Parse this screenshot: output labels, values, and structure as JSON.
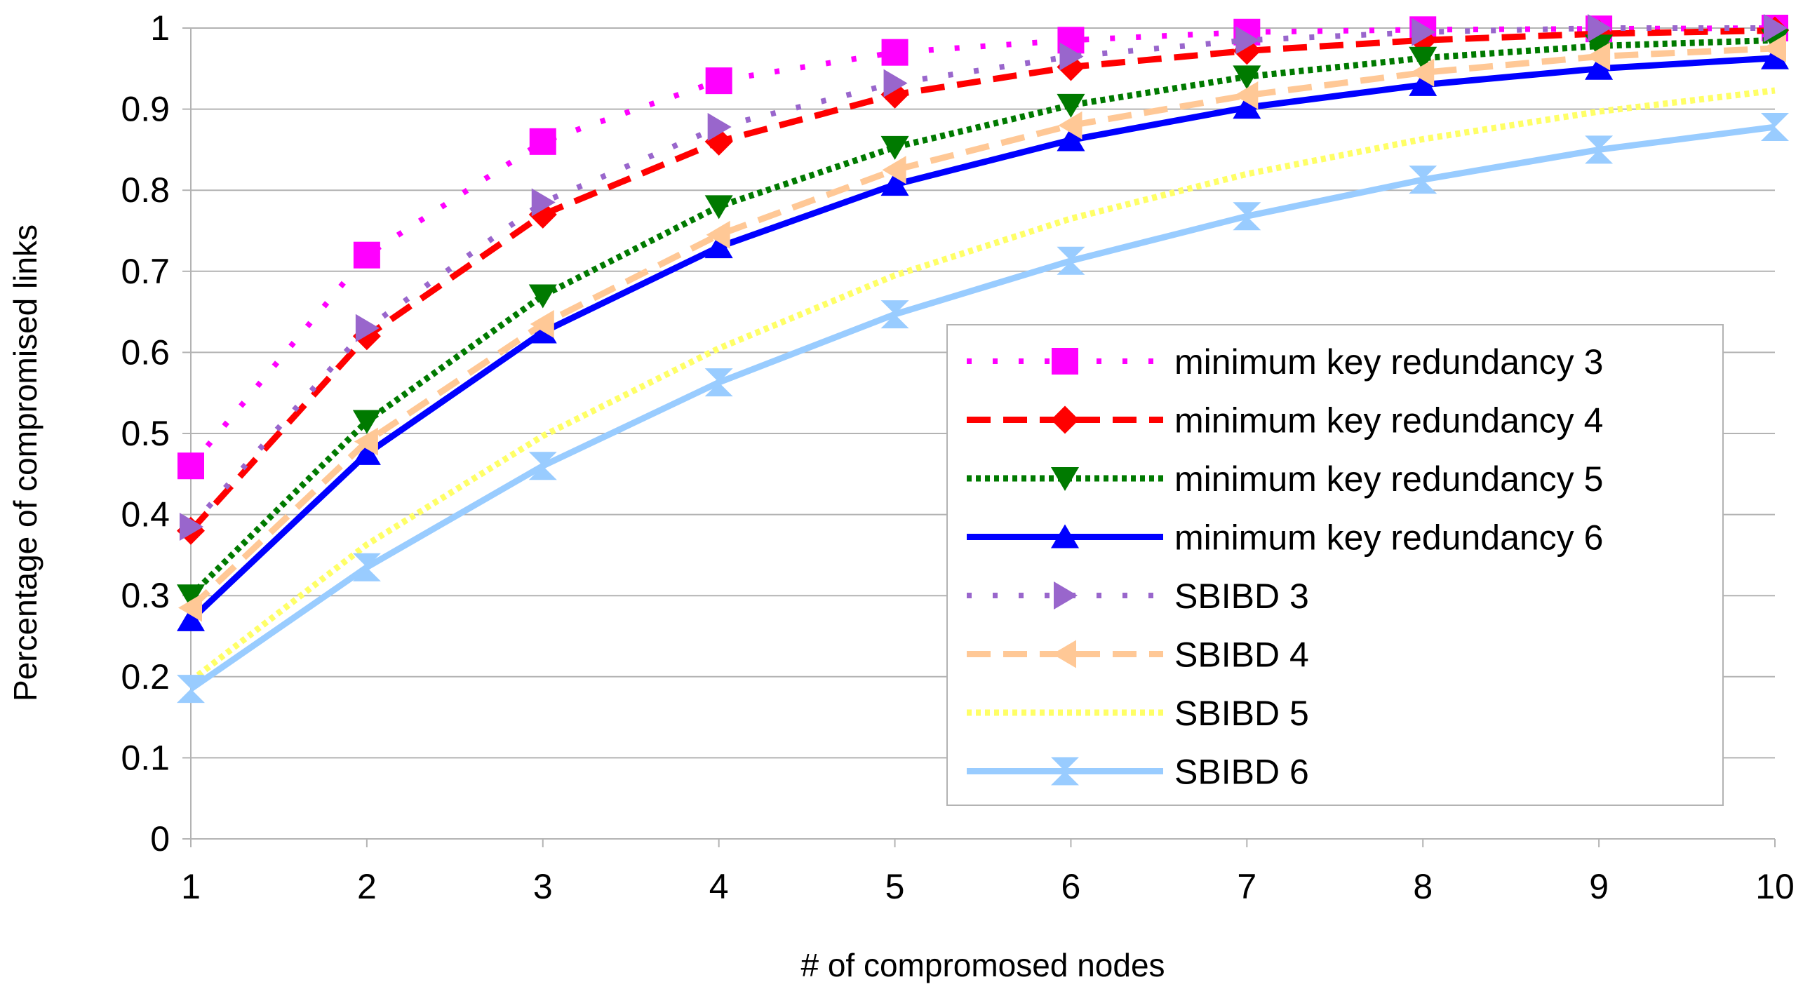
{
  "chart_data": {
    "type": "line",
    "xlabel": "# of compromosed nodes",
    "ylabel": "Percentage of compromised links",
    "x": [
      1,
      2,
      3,
      4,
      5,
      6,
      7,
      8,
      9,
      10
    ],
    "x_ticks": [
      "1",
      "2",
      "3",
      "4",
      "5",
      "6",
      "7",
      "8",
      "9",
      "10"
    ],
    "xlim": [
      1,
      10
    ],
    "ylim": [
      0,
      1
    ],
    "y_ticks": [
      "0",
      "0.1",
      "0.2",
      "0.3",
      "0.4",
      "0.5",
      "0.6",
      "0.7",
      "0.8",
      "0.9",
      "1"
    ],
    "grid": "horizontal",
    "legend_position": "lower-right inside plot",
    "series": [
      {
        "name": "minimum key redundancy 3",
        "color": "#ff00ff",
        "dash": "dots",
        "marker": "square",
        "values": [
          0.46,
          0.72,
          0.86,
          0.935,
          0.97,
          0.985,
          0.995,
          0.998,
          0.999,
          1.0
        ]
      },
      {
        "name": "minimum key redundancy 4",
        "color": "#ff0000",
        "dash": "dash",
        "marker": "diamond",
        "values": [
          0.38,
          0.62,
          0.77,
          0.86,
          0.918,
          0.952,
          0.972,
          0.985,
          0.993,
          0.997
        ]
      },
      {
        "name": "minimum key redundancy 5",
        "color": "#007a00",
        "dash": "dotted",
        "marker": "triangle-down",
        "values": [
          0.3,
          0.515,
          0.67,
          0.78,
          0.853,
          0.905,
          0.94,
          0.963,
          0.978,
          0.985
        ]
      },
      {
        "name": "minimum key redundancy 6",
        "color": "#0000ff",
        "dash": "solid",
        "marker": "triangle-up",
        "values": [
          0.27,
          0.475,
          0.625,
          0.73,
          0.807,
          0.862,
          0.902,
          0.93,
          0.95,
          0.963
        ]
      },
      {
        "name": "SBIBD 3",
        "color": "#9966cc",
        "dash": "dots",
        "marker": "triangle-right",
        "values": [
          0.385,
          0.63,
          0.785,
          0.878,
          0.932,
          0.965,
          0.985,
          0.995,
          1.0,
          1.0
        ]
      },
      {
        "name": "SBIBD 4",
        "color": "#ffc896",
        "dash": "dash",
        "marker": "triangle-left",
        "values": [
          0.285,
          0.49,
          0.635,
          0.745,
          0.825,
          0.88,
          0.917,
          0.945,
          0.965,
          0.975
        ]
      },
      {
        "name": "SBIBD 5",
        "color": "#ffff66",
        "dash": "dotted",
        "marker": "bowtie",
        "values": [
          0.195,
          0.363,
          0.497,
          0.605,
          0.695,
          0.765,
          0.82,
          0.863,
          0.897,
          0.923
        ]
      },
      {
        "name": "SBIBD 6",
        "color": "#99ccff",
        "dash": "solid",
        "marker": "hourglass",
        "values": [
          0.185,
          0.335,
          0.46,
          0.563,
          0.647,
          0.713,
          0.768,
          0.813,
          0.85,
          0.878
        ]
      }
    ]
  }
}
